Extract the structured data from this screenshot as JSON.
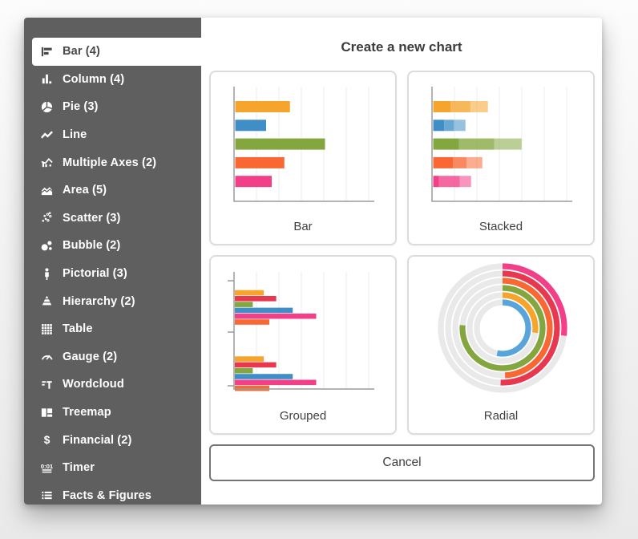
{
  "dialog": {
    "title": "Create a new chart",
    "cancel_label": "Cancel"
  },
  "sidebar": {
    "background_color": "#5F5F5F",
    "selected_text_color": "#4A4A4A",
    "items": [
      {
        "label": "Bar (4)",
        "icon": "bar-icon",
        "selected": true
      },
      {
        "label": "Column (4)",
        "icon": "column-icon",
        "selected": false
      },
      {
        "label": "Pie (3)",
        "icon": "pie-icon",
        "selected": false
      },
      {
        "label": "Line",
        "icon": "line-icon",
        "selected": false
      },
      {
        "label": "Multiple Axes (2)",
        "icon": "multiple-axes-icon",
        "selected": false
      },
      {
        "label": "Area (5)",
        "icon": "area-icon",
        "selected": false
      },
      {
        "label": "Scatter (3)",
        "icon": "scatter-icon",
        "selected": false
      },
      {
        "label": "Bubble (2)",
        "icon": "bubble-icon",
        "selected": false
      },
      {
        "label": "Pictorial (3)",
        "icon": "pictorial-icon",
        "selected": false
      },
      {
        "label": "Hierarchy (2)",
        "icon": "hierarchy-icon",
        "selected": false
      },
      {
        "label": "Table",
        "icon": "table-icon",
        "selected": false
      },
      {
        "label": "Gauge (2)",
        "icon": "gauge-icon",
        "selected": false
      },
      {
        "label": "Wordcloud",
        "icon": "wordcloud-icon",
        "selected": false
      },
      {
        "label": "Treemap",
        "icon": "treemap-icon",
        "selected": false
      },
      {
        "label": "Financial (2)",
        "icon": "financial-icon",
        "selected": false
      },
      {
        "label": "Timer",
        "icon": "timer-icon",
        "selected": false
      },
      {
        "label": "Facts & Figures",
        "icon": "facts-icon",
        "selected": false
      }
    ]
  },
  "palette": {
    "amber": "#F5A42C",
    "blue": "#3F8FC6",
    "green": "#84A63F",
    "orange": "#F96733",
    "pink": "#F33E88",
    "red": "#E8384F",
    "sky": "#58A5DB",
    "track_gray": "#E9E9E9",
    "gridline": "#ECECEC",
    "axis": "#9B9B9B"
  },
  "chart_data": [
    {
      "id": "bar",
      "type": "bar",
      "label": "Bar",
      "orientation": "horizontal",
      "values_pct": [
        39,
        22,
        64,
        35,
        26
      ],
      "colors": [
        "amber",
        "blue",
        "green",
        "orange",
        "pink"
      ],
      "grid": true,
      "xlim": [
        0,
        100
      ]
    },
    {
      "id": "stacked",
      "type": "bar-stacked",
      "label": "Stacked",
      "orientation": "horizontal",
      "totals_pct": [
        39,
        23,
        63,
        35,
        27
      ],
      "segment_fractions": [
        [
          0.32,
          0.36,
          0.32
        ],
        [
          0.34,
          0.3,
          0.36
        ],
        [
          0.29,
          0.4,
          0.31
        ],
        [
          0.4,
          0.28,
          0.32
        ],
        [
          0.15,
          0.55,
          0.3
        ]
      ],
      "segment_opacities": [
        1,
        0.78,
        0.55
      ],
      "colors": [
        "amber",
        "blue",
        "green",
        "orange",
        "pink"
      ],
      "grid": true,
      "xlim": [
        0,
        100
      ]
    },
    {
      "id": "grouped",
      "type": "bar-grouped",
      "label": "Grouped",
      "orientation": "horizontal",
      "groups": 2,
      "values_pct": [
        21,
        30,
        13,
        42,
        59,
        25
      ],
      "colors": [
        "amber",
        "red",
        "green",
        "blue",
        "pink",
        "orange"
      ],
      "grid": true,
      "xlim": [
        0,
        100
      ]
    },
    {
      "id": "radial",
      "type": "radial",
      "label": "Radial",
      "rings_outer_to_inner": [
        "pink",
        "red",
        "orange",
        "green",
        "amber",
        "sky"
      ],
      "sweep_degrees": [
        97,
        182,
        177,
        274,
        98,
        192
      ],
      "track_color": "#E9E9E9"
    }
  ]
}
